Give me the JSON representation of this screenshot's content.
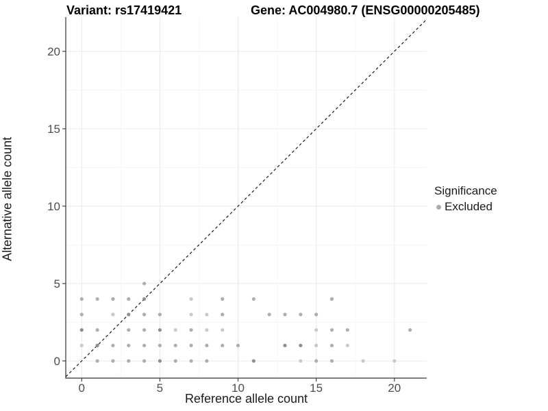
{
  "header": {
    "variant_title": "Variant: rs17419421",
    "gene_title": "Gene: AC004980.7 (ENSG00000205485)"
  },
  "axes": {
    "x_label": "Reference allele count",
    "y_label": "Alternative allele count",
    "x_ticks": [
      0,
      5,
      10,
      15,
      20
    ],
    "y_ticks": [
      0,
      5,
      10,
      15,
      20
    ],
    "x_minor_ticks": [
      2.5,
      7.5,
      12.5,
      17.5
    ],
    "y_minor_ticks": [
      2.5,
      7.5,
      12.5,
      17.5
    ]
  },
  "legend": {
    "title": "Significance",
    "items": [
      {
        "label": "Excluded",
        "color": "#ababab"
      }
    ]
  },
  "colors": {
    "point_light": "#c9c9c9",
    "point_mid": "#aeaeae",
    "point_dark": "#8e8e8e",
    "grid_major": "#e9e9e9",
    "grid_minor": "#f4f4f4",
    "axis_line": "#333333",
    "tick_mark": "#333333",
    "identity_line": "#1a1a1a",
    "legend_key": "#ababab"
  },
  "chart_data": {
    "type": "scatter",
    "title": "Variant: rs17419421 | Gene: AC004980.7 (ENSG00000205485)",
    "xlabel": "Reference allele count",
    "ylabel": "Alternative allele count",
    "xlim": [
      -1.02,
      22.07
    ],
    "ylim": [
      -1.11,
      22.21
    ],
    "grid": "on",
    "legend_position": "right",
    "identity_line": {
      "show": true,
      "style": "dashed",
      "equation": "y = x"
    },
    "series": [
      {
        "name": "Excluded",
        "point_format": "[ref_count, alt_count, shade_tier]",
        "points": [
          [
            4,
            5,
            2
          ],
          [
            0,
            4,
            2
          ],
          [
            1,
            4,
            2
          ],
          [
            2,
            4,
            2
          ],
          [
            3,
            4,
            2
          ],
          [
            4,
            4,
            3
          ],
          [
            7,
            4,
            1
          ],
          [
            9,
            4,
            2
          ],
          [
            11,
            4,
            2
          ],
          [
            16,
            4,
            2
          ],
          [
            0,
            3,
            2
          ],
          [
            2,
            3,
            1
          ],
          [
            3,
            3,
            3
          ],
          [
            4,
            3,
            2
          ],
          [
            5,
            3,
            2
          ],
          [
            7,
            3,
            1
          ],
          [
            8,
            3,
            1
          ],
          [
            9,
            3,
            2
          ],
          [
            12,
            3,
            2
          ],
          [
            13,
            3,
            2
          ],
          [
            14,
            3,
            2
          ],
          [
            15,
            3,
            2
          ],
          [
            0,
            2,
            3
          ],
          [
            1,
            2,
            2
          ],
          [
            3,
            2,
            2
          ],
          [
            4,
            2,
            2
          ],
          [
            5,
            2,
            3
          ],
          [
            6,
            2,
            1
          ],
          [
            7,
            2,
            2
          ],
          [
            8,
            2,
            1
          ],
          [
            9,
            2,
            1
          ],
          [
            15,
            2,
            1
          ],
          [
            16,
            2,
            2
          ],
          [
            17,
            2,
            2
          ],
          [
            21,
            2,
            2
          ],
          [
            0,
            1,
            1
          ],
          [
            1,
            1,
            3
          ],
          [
            2,
            1,
            2
          ],
          [
            3,
            1,
            2
          ],
          [
            4,
            1,
            2
          ],
          [
            5,
            1,
            2
          ],
          [
            6,
            1,
            2
          ],
          [
            7,
            1,
            2
          ],
          [
            8,
            1,
            2
          ],
          [
            9,
            1,
            2
          ],
          [
            10,
            1,
            2
          ],
          [
            13,
            1,
            3
          ],
          [
            14,
            1,
            3
          ],
          [
            15,
            1,
            1
          ],
          [
            16,
            1,
            2
          ],
          [
            17,
            1,
            1
          ],
          [
            1,
            0,
            2
          ],
          [
            2,
            0,
            2
          ],
          [
            3,
            0,
            2
          ],
          [
            4,
            0,
            2
          ],
          [
            5,
            0,
            3
          ],
          [
            6,
            0,
            2
          ],
          [
            7,
            0,
            2
          ],
          [
            8,
            0,
            2
          ],
          [
            11,
            0,
            3
          ],
          [
            14,
            0,
            1
          ],
          [
            15,
            0,
            2
          ],
          [
            16,
            0,
            2
          ],
          [
            18,
            0,
            1
          ],
          [
            20,
            0,
            1
          ]
        ]
      }
    ]
  }
}
